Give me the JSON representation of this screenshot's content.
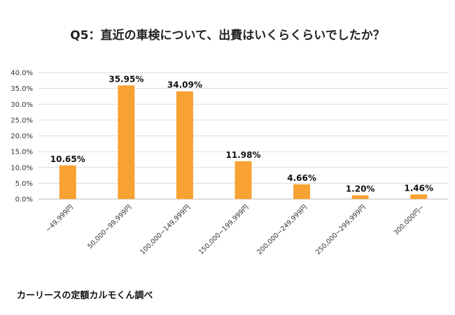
{
  "chart_data": {
    "type": "bar",
    "title": "Q5：直近の車検について、出費はいくらくらいでしたか？",
    "categories": [
      "~49,999円",
      "50,000~99,999円",
      "100,000~149,999円",
      "150,000~199,999円",
      "200,000~249,999円",
      "250,000~299,999円",
      "300,000円~"
    ],
    "values": [
      10.65,
      35.95,
      34.09,
      11.98,
      4.66,
      1.2,
      1.46
    ],
    "data_labels": [
      "10.65%",
      "35.95%",
      "34.09%",
      "11.98%",
      "4.66%",
      "1.20%",
      "1.46%"
    ],
    "y_ticks": [
      "0.0%",
      "5.0%",
      "10.0%",
      "15.0%",
      "20.0%",
      "25.0%",
      "30.0%",
      "35.0%",
      "40.0%"
    ],
    "ylim": [
      0,
      40
    ],
    "xlabel": "",
    "ylabel": "",
    "grid": true,
    "legend": "none",
    "bar_color": "#F7A232"
  },
  "source_note": "カーリースの定額カルモくん調べ"
}
